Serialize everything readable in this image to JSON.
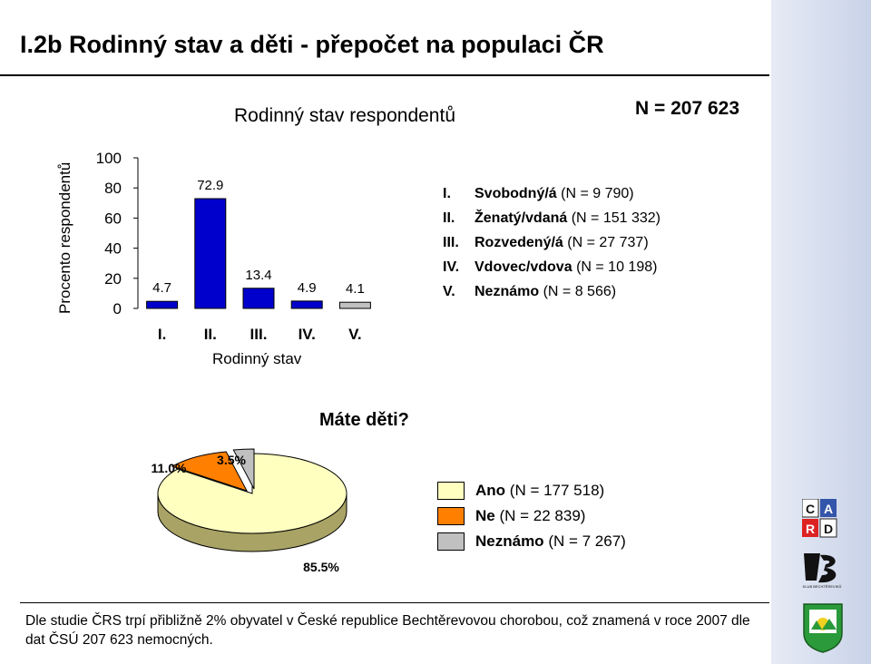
{
  "header": {
    "title": "I.2b Rodinný stav a děti - přepočet na populaci ČR",
    "n_total": "N = 207 623"
  },
  "chart_data": [
    {
      "type": "bar",
      "title": "Rodinný stav respondentů",
      "xlabel": "Rodinný stav",
      "ylabel": "Procento respondentů",
      "categories": [
        "I.",
        "II.",
        "III.",
        "IV.",
        "V."
      ],
      "values": [
        4.7,
        72.9,
        13.4,
        4.9,
        4.1
      ],
      "value_labels": [
        "4.7",
        "72.9",
        "13.4",
        "4.9",
        "4.1"
      ],
      "ylim": [
        0,
        100
      ],
      "yticks": [
        "0",
        "20",
        "40",
        "60",
        "80",
        "100"
      ],
      "bar_color": "#0000cc",
      "highlight_color": "#c0c0c0",
      "legend": [
        {
          "roman": "I.",
          "label": "Svobodný/á",
          "count": "(N = 9 790)"
        },
        {
          "roman": "II.",
          "label": "Ženatý/vdaná",
          "count": "(N = 151 332)"
        },
        {
          "roman": "III.",
          "label": "Rozvedený/á",
          "count": "(N = 27 737)"
        },
        {
          "roman": "IV.",
          "label": "Vdovec/vdova",
          "count": "(N = 10 198)"
        },
        {
          "roman": "V.",
          "label": "Neznámo",
          "count": "(N = 8 566)"
        }
      ]
    },
    {
      "type": "pie",
      "title": "Máte děti?",
      "categories": [
        "Ano",
        "Ne",
        "Neznámo"
      ],
      "values": [
        85.5,
        11.0,
        3.5
      ],
      "value_labels": [
        "85.5%",
        "11.0%",
        "3.5%"
      ],
      "colors": [
        "#ffffc0",
        "#ff8000",
        "#c0c0c0"
      ],
      "side_color": "#a9a365",
      "legend": [
        {
          "label": "Ano",
          "count": "(N = 177 518)"
        },
        {
          "label": "Ne",
          "count": "(N = 22 839)"
        },
        {
          "label": "Neznámo",
          "count": "(N = 7 267)"
        }
      ]
    }
  ],
  "footnote": "Dle studie ČRS trpí přibližně 2% obyvatel v České republice Bechtěrevovou chorobou, což znamená v roce 2007 dle dat ČSÚ 207 623 nemocných.",
  "logos": {
    "card": {
      "letters": [
        "C",
        "A",
        "R",
        "D"
      ],
      "colors": [
        "#ffffff",
        "#3355aa",
        "#dd2222",
        "#ffffff"
      ]
    },
    "klub": {
      "caption": "KLUB BECHTĚREVIKŮ"
    }
  }
}
